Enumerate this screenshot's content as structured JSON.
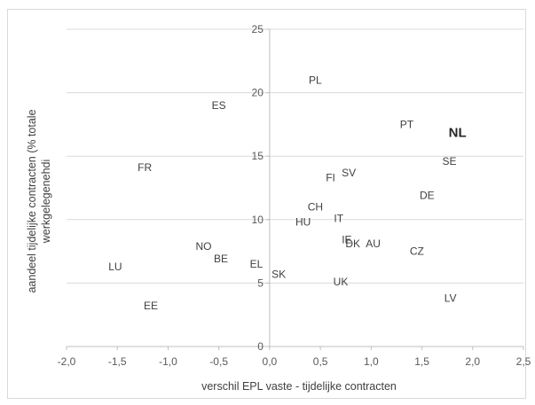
{
  "chart_data": {
    "type": "scatter",
    "title": "",
    "xlabel": "verschil EPL vaste - tijdelijke contracten",
    "ylabel_lines": [
      "aandeel tijdelijke contracten (% totale",
      "werkgelegenehdi"
    ],
    "xlim": [
      -2.0,
      2.5
    ],
    "ylim": [
      0,
      25
    ],
    "x_ticks": [
      -2.0,
      -1.5,
      -1.0,
      -0.5,
      0.0,
      0.5,
      1.0,
      1.5,
      2.0,
      2.5
    ],
    "x_tick_labels": [
      "-2,0",
      "-1,5",
      "-1,0",
      "-0,5",
      "0,0",
      "0,5",
      "1,0",
      "1,5",
      "2,0",
      "2,5"
    ],
    "y_ticks": [
      0,
      5,
      10,
      15,
      20,
      25
    ],
    "y_tick_labels": [
      "0",
      "5",
      "10",
      "15",
      "20",
      "25"
    ],
    "grid": true,
    "legend": "none",
    "points": [
      {
        "label": "PL",
        "x": 0.45,
        "y": 21.0
      },
      {
        "label": "ES",
        "x": -0.5,
        "y": 19.0
      },
      {
        "label": "PT",
        "x": 1.35,
        "y": 17.5
      },
      {
        "label": "NL",
        "x": 1.85,
        "y": 16.8,
        "emphasis": true
      },
      {
        "label": "SE",
        "x": 1.77,
        "y": 14.6
      },
      {
        "label": "FR",
        "x": -1.23,
        "y": 14.1
      },
      {
        "label": "SV",
        "x": 0.78,
        "y": 13.7
      },
      {
        "label": "FI",
        "x": 0.6,
        "y": 13.3
      },
      {
        "label": "DE",
        "x": 1.55,
        "y": 11.9
      },
      {
        "label": "CH",
        "x": 0.45,
        "y": 11.0
      },
      {
        "label": "IT",
        "x": 0.68,
        "y": 10.1
      },
      {
        "label": "HU",
        "x": 0.33,
        "y": 9.8
      },
      {
        "label": "IE",
        "x": 0.76,
        "y": 8.4
      },
      {
        "label": "DK",
        "x": 0.82,
        "y": 8.1
      },
      {
        "label": "AU",
        "x": 1.02,
        "y": 8.1
      },
      {
        "label": "NO",
        "x": -0.65,
        "y": 7.9
      },
      {
        "label": "CZ",
        "x": 1.45,
        "y": 7.5
      },
      {
        "label": "BE",
        "x": -0.48,
        "y": 6.9
      },
      {
        "label": "EL",
        "x": -0.13,
        "y": 6.5
      },
      {
        "label": "LU",
        "x": -1.52,
        "y": 6.3
      },
      {
        "label": "SK",
        "x": 0.09,
        "y": 5.7
      },
      {
        "label": "UK",
        "x": 0.7,
        "y": 5.1
      },
      {
        "label": "LV",
        "x": 1.78,
        "y": 3.8
      },
      {
        "label": "EE",
        "x": -1.17,
        "y": 3.2
      }
    ]
  }
}
